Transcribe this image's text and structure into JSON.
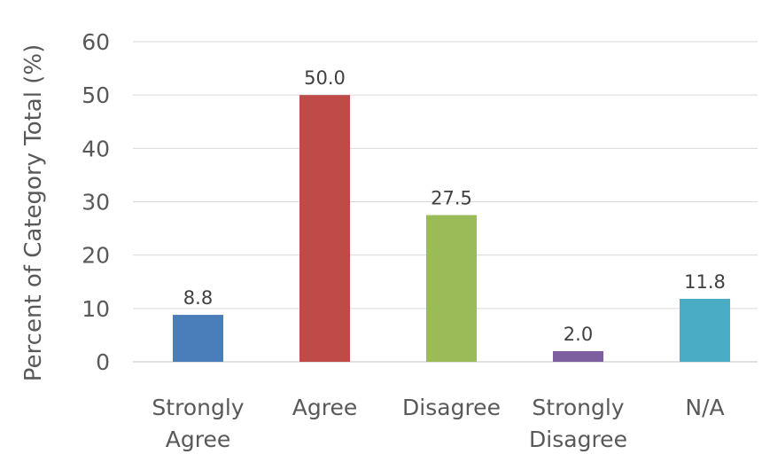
{
  "chart_data": {
    "type": "bar",
    "categories": [
      [
        "Strongly",
        "Agree"
      ],
      [
        "Agree"
      ],
      [
        "Disagree"
      ],
      [
        "Strongly",
        "Disagree"
      ],
      [
        "N/A"
      ]
    ],
    "values": [
      8.8,
      50.0,
      27.5,
      2.0,
      11.8
    ],
    "value_labels": [
      "8.8",
      "50.0",
      "27.5",
      "2.0",
      "11.8"
    ],
    "colors": [
      "#4a7ebb",
      "#be4b48",
      "#9bbb59",
      "#7d5fa0",
      "#4bacc6"
    ],
    "ylabel": "Percent of Category Total (%)",
    "xlabel": "",
    "ylim": [
      0,
      60
    ],
    "yticks": [
      0,
      10,
      20,
      30,
      40,
      50,
      60
    ],
    "grid": true,
    "legend": "none"
  }
}
